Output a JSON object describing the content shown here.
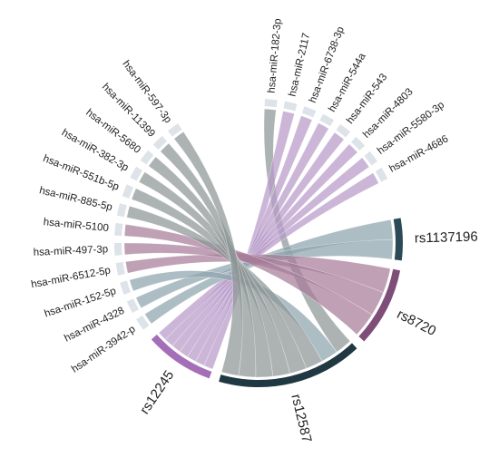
{
  "diagram": {
    "type": "chord",
    "colors": {
      "mirna_segment": "#dde3e8",
      "ribbon_gray": "#8e9596",
      "ribbon_purple": "#b79ac9",
      "ribbon_mauve": "#a67b98",
      "ribbon_slate": "#8da3ad",
      "rs1137196": "#2b4a55",
      "rs8720": "#7e4e78",
      "rs12245": "#a46fb7",
      "rs12587": "#1f3841"
    },
    "nodes": [
      {
        "id": "hsa-miR-182-3p",
        "label": "hsa-miR-182-3p",
        "group": "miRNA"
      },
      {
        "id": "hsa-miR-2117",
        "label": "hsa-miR-2117",
        "group": "miRNA"
      },
      {
        "id": "hsa-miR-6738-3p",
        "label": "hsa-miR-6738-3p",
        "group": "miRNA"
      },
      {
        "id": "hsa-miR-544a",
        "label": "hsa-miR-544a",
        "group": "miRNA"
      },
      {
        "id": "hsa-miR-543",
        "label": "hsa-miR-543",
        "group": "miRNA"
      },
      {
        "id": "hsa-miR-4803",
        "label": "hsa-miR-4803",
        "group": "miRNA"
      },
      {
        "id": "hsa-miR-5580-3p",
        "label": "hsa-miR-5580-3p",
        "group": "miRNA"
      },
      {
        "id": "hsa-miR-4686",
        "label": "hsa-miR-4686",
        "group": "miRNA"
      },
      {
        "id": "rs1137196",
        "label": "rs1137196",
        "group": "SNP"
      },
      {
        "id": "rs8720",
        "label": "rs8720",
        "group": "SNP"
      },
      {
        "id": "rs12587",
        "label": "rs12587",
        "group": "SNP"
      },
      {
        "id": "rs12245",
        "label": "rs12245",
        "group": "SNP"
      },
      {
        "id": "hsa-miR-3942-p",
        "label": "hsa-miR-3942-p",
        "group": "miRNA"
      },
      {
        "id": "hsa-miR-4328",
        "label": "hsa-miR-4328",
        "group": "miRNA"
      },
      {
        "id": "hsa-miR-152-5p",
        "label": "hsa-miR-152-5p",
        "group": "miRNA"
      },
      {
        "id": "hsa-miR-6512-5p",
        "label": "hsa-miR-6512-5p",
        "group": "miRNA"
      },
      {
        "id": "hsa-miR-497-3p",
        "label": "hsa-miR-497-3p",
        "group": "miRNA"
      },
      {
        "id": "hsa-miR-5100",
        "label": "hsa-miR-5100",
        "group": "miRNA"
      },
      {
        "id": "hsa-miR-885-5p",
        "label": "hsa-miR-885-5p",
        "group": "miRNA"
      },
      {
        "id": "hsa-miR-551b-5p",
        "label": "hsa-miR-551b-5p",
        "group": "miRNA"
      },
      {
        "id": "hsa-miR-382-3p",
        "label": "hsa-miR-382-3p",
        "group": "miRNA"
      },
      {
        "id": "hsa-miR-5680",
        "label": "hsa-miR-5680",
        "group": "miRNA"
      },
      {
        "id": "hsa-miR-11399",
        "label": "hsa-miR-11399",
        "group": "miRNA"
      },
      {
        "id": "hsa-miR-597-3p",
        "label": "hsa-miR-597-3p",
        "group": "miRNA"
      }
    ],
    "links": [
      {
        "source": "hsa-miR-182-3p",
        "target": "rs12587",
        "color": "gray"
      },
      {
        "source": "hsa-miR-2117",
        "target": "rs12245",
        "color": "purple"
      },
      {
        "source": "hsa-miR-6738-3p",
        "target": "rs12245",
        "color": "purple"
      },
      {
        "source": "hsa-miR-544a",
        "target": "rs12245",
        "color": "purple"
      },
      {
        "source": "hsa-miR-543",
        "target": "rs12245",
        "color": "purple"
      },
      {
        "source": "hsa-miR-4803",
        "target": "rs12245",
        "color": "purple"
      },
      {
        "source": "hsa-miR-5580-3p",
        "target": "rs12245",
        "color": "purple"
      },
      {
        "source": "hsa-miR-4686",
        "target": "rs12245",
        "color": "purple"
      },
      {
        "source": "hsa-miR-3942-p",
        "target": "rs1137196",
        "color": "slate"
      },
      {
        "source": "hsa-miR-4328",
        "target": "rs1137196",
        "color": "slate"
      },
      {
        "source": "hsa-miR-152-5p",
        "target": "rs12587",
        "color": "slate"
      },
      {
        "source": "hsa-miR-6512-5p",
        "target": "rs8720",
        "color": "mauve"
      },
      {
        "source": "hsa-miR-497-3p",
        "target": "rs8720",
        "color": "mauve"
      },
      {
        "source": "hsa-miR-5100",
        "target": "rs8720",
        "color": "mauve"
      },
      {
        "source": "hsa-miR-885-5p",
        "target": "rs12587",
        "color": "gray"
      },
      {
        "source": "hsa-miR-551b-5p",
        "target": "rs12587",
        "color": "gray"
      },
      {
        "source": "hsa-miR-382-3p",
        "target": "rs12587",
        "color": "gray"
      },
      {
        "source": "hsa-miR-5680",
        "target": "rs12587",
        "color": "gray"
      },
      {
        "source": "hsa-miR-11399",
        "target": "rs12587",
        "color": "gray"
      },
      {
        "source": "hsa-miR-597-3p",
        "target": "rs12587",
        "color": "gray"
      }
    ]
  }
}
